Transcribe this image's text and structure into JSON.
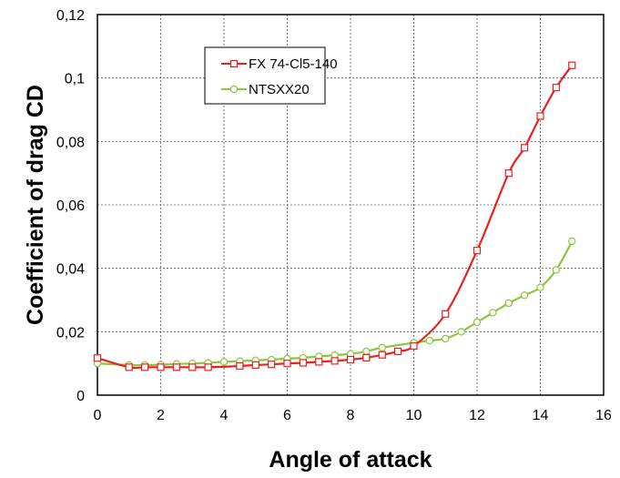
{
  "chart_data": {
    "type": "line",
    "title": "",
    "xlabel": "Angle of attack",
    "ylabel": "Coefficient of drag CD",
    "xlim": [
      0,
      16
    ],
    "ylim": [
      0,
      0.12
    ],
    "x_ticks": [
      "0",
      "2",
      "4",
      "6",
      "8",
      "10",
      "12",
      "14",
      "16"
    ],
    "y_ticks": [
      "0",
      "0,02",
      "0,04",
      "0,06",
      "0,08",
      "0,1",
      "0,12"
    ],
    "grid": true,
    "legend_position": "top-left",
    "series": [
      {
        "name": "FX 74-Cl5-140",
        "color": "#e8201f",
        "marker": "square",
        "x": [
          0,
          1,
          1.5,
          2,
          2.5,
          3,
          3.5,
          4.5,
          5,
          5.5,
          6,
          6.5,
          7,
          7.5,
          8,
          8.5,
          9,
          9.5,
          10,
          11,
          12,
          13,
          13.5,
          14,
          14.5,
          15
        ],
        "y": [
          0.0117,
          0.0088,
          0.0088,
          0.0088,
          0.0088,
          0.0088,
          0.0088,
          0.0092,
          0.0095,
          0.0097,
          0.01,
          0.0102,
          0.0105,
          0.0108,
          0.0112,
          0.0118,
          0.0127,
          0.0138,
          0.0155,
          0.0256,
          0.0456,
          0.07,
          0.078,
          0.088,
          0.097,
          0.104
        ]
      },
      {
        "name": "NTSXX20",
        "color": "#8cc63f",
        "marker": "circle",
        "x": [
          0,
          1,
          1.5,
          2,
          2.5,
          3,
          3.5,
          4,
          4.5,
          5,
          5.5,
          6,
          6.5,
          7,
          7.5,
          8,
          8.5,
          9,
          10,
          10.5,
          11,
          11.5,
          12,
          12.5,
          13,
          13.5,
          14,
          14.5,
          15
        ],
        "y": [
          0.01,
          0.0095,
          0.0095,
          0.0096,
          0.0098,
          0.01,
          0.0102,
          0.0105,
          0.0107,
          0.011,
          0.0112,
          0.0115,
          0.0118,
          0.0122,
          0.0126,
          0.013,
          0.0138,
          0.015,
          0.0165,
          0.0172,
          0.0178,
          0.02,
          0.023,
          0.026,
          0.029,
          0.0315,
          0.034,
          0.0395,
          0.0485
        ]
      }
    ]
  }
}
